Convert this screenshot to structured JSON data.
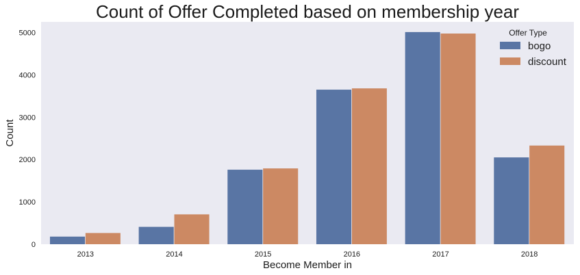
{
  "chart_data": {
    "type": "bar",
    "title": "Count of Offer Completed based on membership year",
    "xlabel": "Become Member in",
    "ylabel": "Count",
    "categories": [
      "2013",
      "2014",
      "2015",
      "2016",
      "2017",
      "2018"
    ],
    "series": [
      {
        "name": "bogo",
        "color": "#5975a4",
        "values": [
          180,
          410,
          1760,
          3650,
          5010,
          2050
        ]
      },
      {
        "name": "discount",
        "color": "#cc8963",
        "values": [
          265,
          705,
          1790,
          3680,
          4975,
          2330
        ]
      }
    ],
    "ylim": [
      0,
      5250
    ],
    "yticks": [
      0,
      1000,
      2000,
      3000,
      4000,
      5000
    ],
    "legend": {
      "title": "Offer Type",
      "placement": "top-right"
    },
    "grid": false,
    "background": "#eaeaf2"
  }
}
